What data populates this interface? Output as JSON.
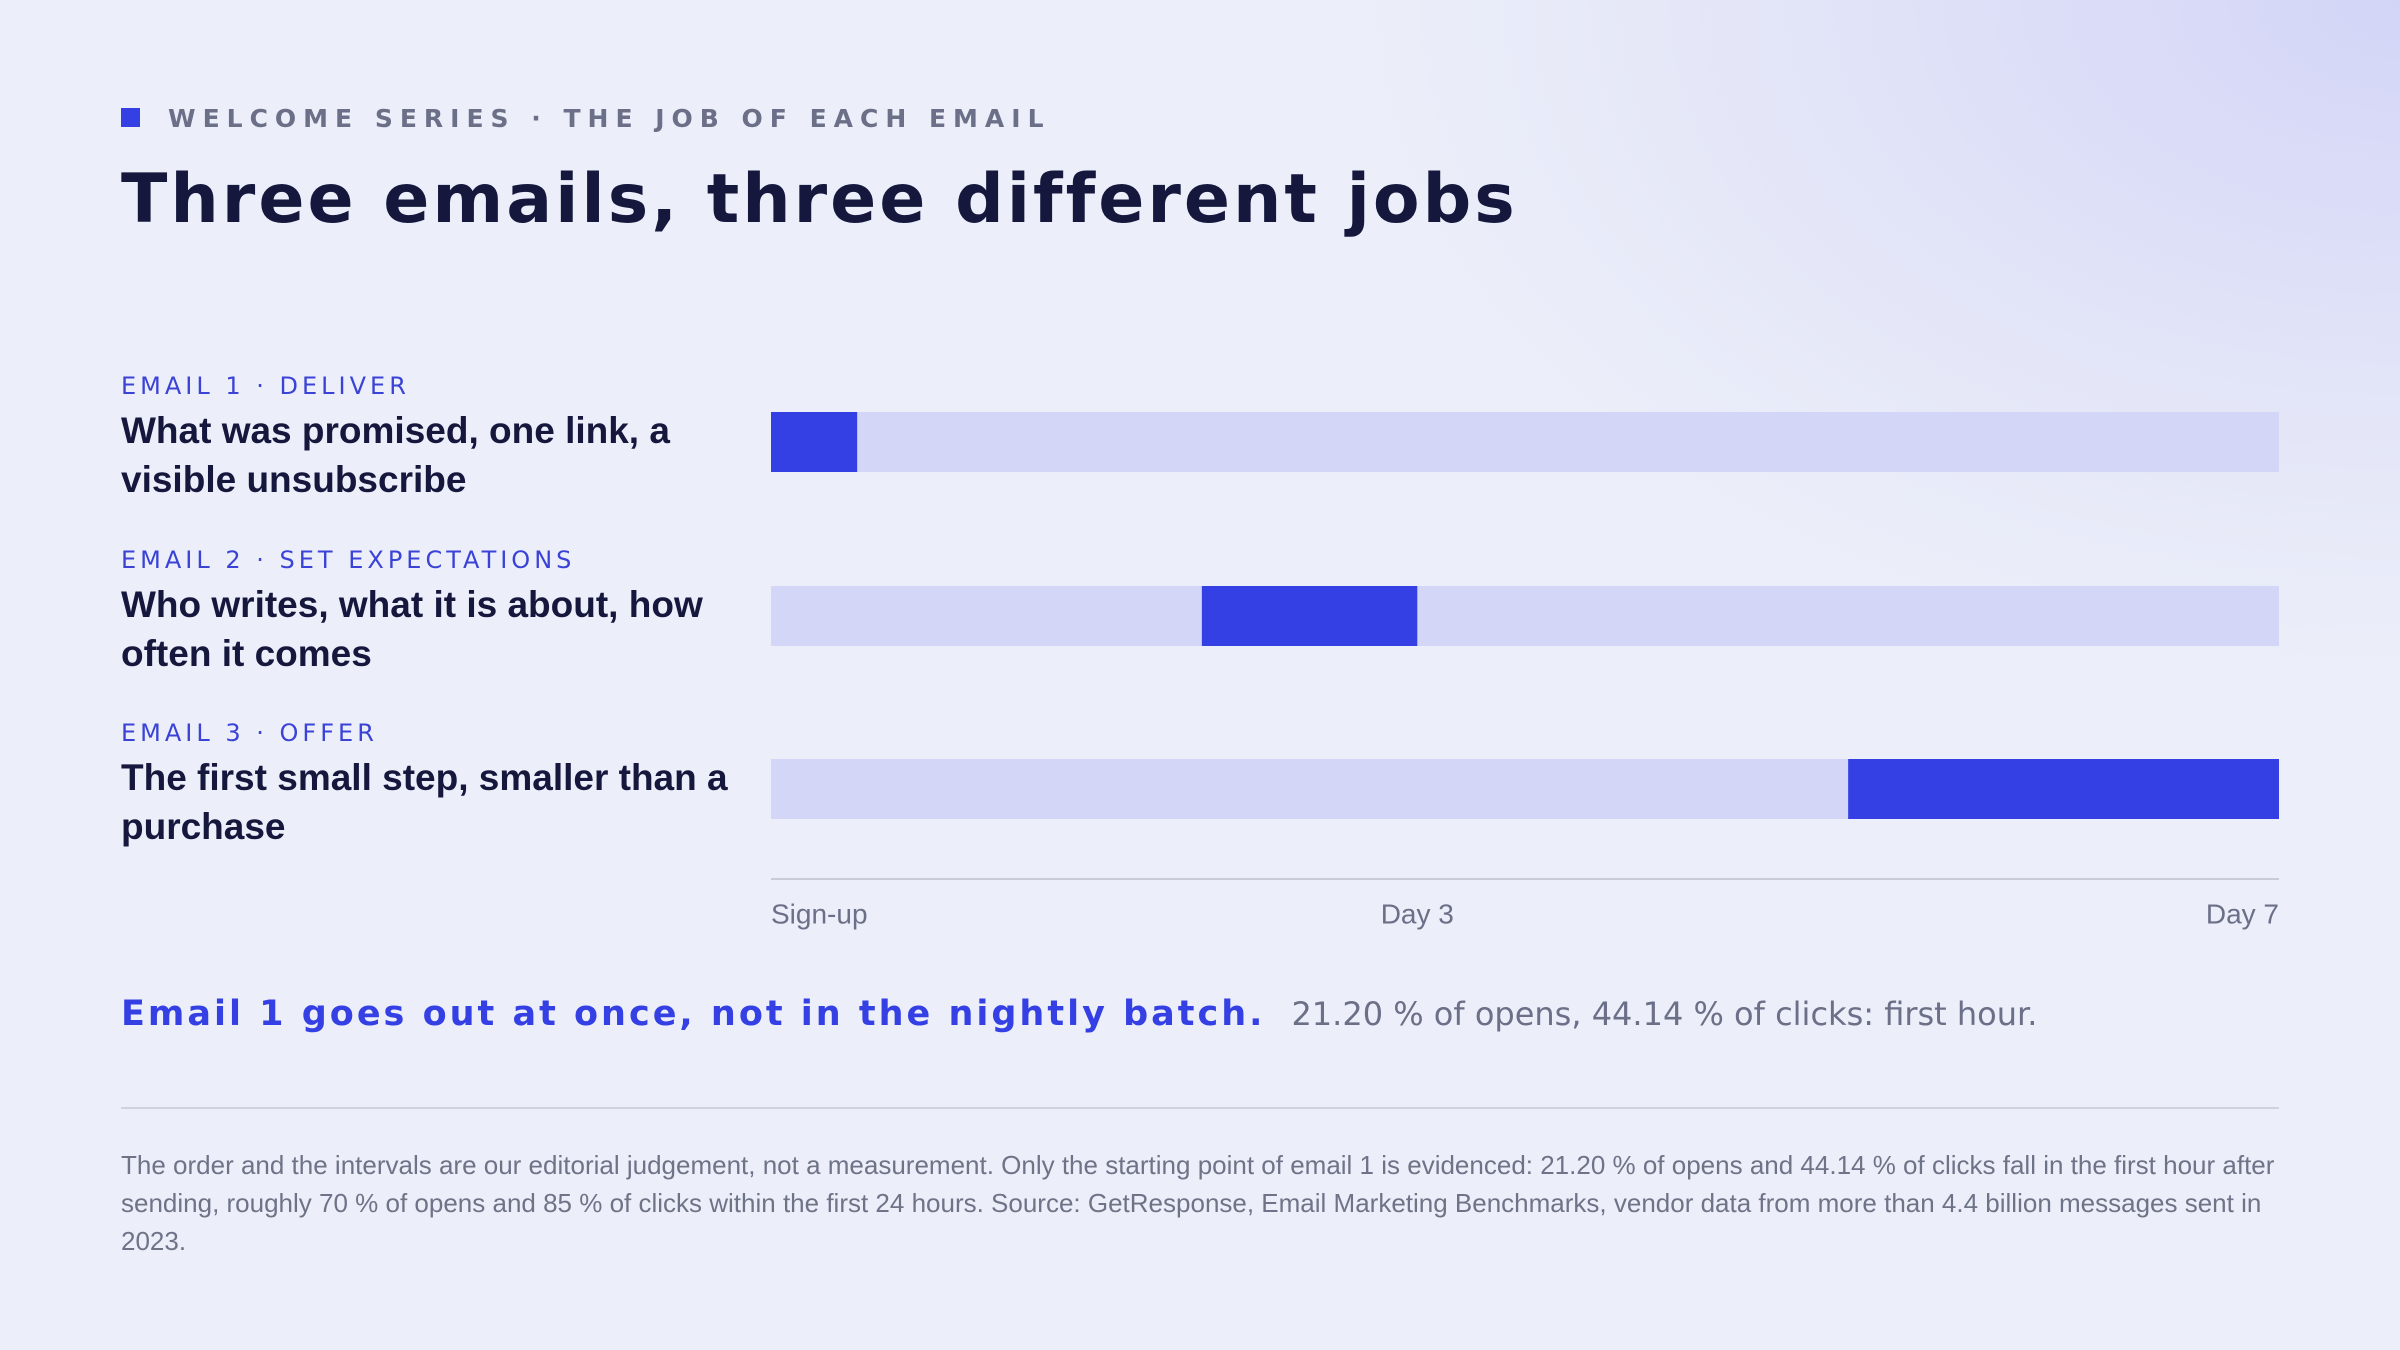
{
  "header": {
    "eyebrow": "WELCOME SERIES · THE JOB OF EACH EMAIL",
    "title": "Three emails, three different jobs"
  },
  "chart_data": {
    "type": "gantt",
    "tasks": [
      {
        "label": "EMAIL 1 · DELIVER",
        "name": "What was promised, one link, a visible unsubscribe",
        "start": 0,
        "end": 0.4
      },
      {
        "label": "EMAIL 2 · SET EXPECTATIONS",
        "name": "Who writes, what it is about, how often it comes",
        "start": 2,
        "end": 3
      },
      {
        "label": "EMAIL 3 · OFFER",
        "name": "The first small step, smaller than a purchase",
        "start": 5,
        "end": 7
      }
    ],
    "color": "#3440e4",
    "track_color": "#d3d6f6",
    "xlim": [
      0,
      7
    ],
    "xticks": [
      {
        "value": 0,
        "label": "Sign-up"
      },
      {
        "value": 3,
        "label": "Day 3"
      },
      {
        "value": 7,
        "label": "Day 7"
      }
    ]
  },
  "callout": {
    "highlight": "Email 1 goes out at once, not in the nightly batch.",
    "detail": "21.20 % of opens, 44.14 % of clicks: first hour."
  },
  "footnote": "The order and the intervals are our editorial judgement, not a measurement. Only the starting point of email 1 is evidenced: 21.20 % of opens and 44.14 % of clicks fall in the first hour after sending, roughly 70 % of opens and 85 % of clicks within the first 24 hours. Source: GetResponse, Email Marketing Benchmarks, vendor data from more than 4.4 billion messages sent in 2023."
}
